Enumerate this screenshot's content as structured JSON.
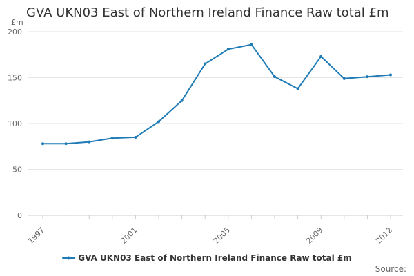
{
  "chart_data": {
    "type": "line",
    "title": "GVA UKN03 East of Northern Ireland Finance Raw total £m",
    "ylabel": "£m",
    "xlabel": "",
    "ylim": [
      0,
      200
    ],
    "yticks": [
      0,
      50,
      100,
      150,
      200
    ],
    "xtick_labels": [
      "1997",
      "2001",
      "2005",
      "2009",
      "2012"
    ],
    "x": [
      1997,
      1998,
      1999,
      2000,
      2001,
      2002,
      2003,
      2004,
      2005,
      2006,
      2007,
      2008,
      2009,
      2010,
      2011,
      2012
    ],
    "grid": true,
    "legend_position": "bottom",
    "series": [
      {
        "name": "GVA UKN03 East of Northern Ireland Finance Raw total £m",
        "color": "#1f7bb6",
        "values": [
          78,
          78,
          80,
          84,
          85,
          102,
          125,
          165,
          181,
          186,
          151,
          138,
          173,
          149,
          151,
          153
        ]
      }
    ],
    "source": "Source:"
  }
}
